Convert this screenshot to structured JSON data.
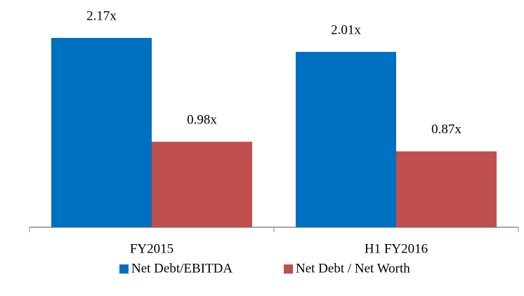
{
  "chart_data": {
    "type": "bar",
    "categories": [
      "FY2015",
      "H1 FY2016"
    ],
    "series": [
      {
        "name": "Net Debt/EBITDA",
        "color": "#0070c0",
        "values": [
          2.17,
          2.01
        ],
        "value_labels": [
          "2.17x",
          "2.01x"
        ]
      },
      {
        "name": "Net Debt / Net Worth",
        "color": "#c0504d",
        "values": [
          0.98,
          0.87
        ],
        "value_labels": [
          "0.98x",
          "0.87x"
        ]
      }
    ],
    "legend": "bottom"
  }
}
